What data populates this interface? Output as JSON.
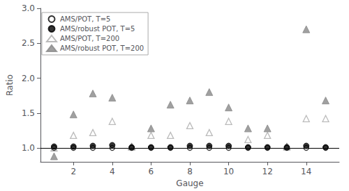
{
  "chart_data": {
    "type": "scatter",
    "xlabel": "Gauge",
    "ylabel": "Ratio",
    "x": [
      1,
      2,
      3,
      4,
      5,
      6,
      7,
      8,
      9,
      10,
      11,
      12,
      13,
      14,
      15
    ],
    "series": [
      {
        "name": "AMS/POT, T=5",
        "color": "#000000",
        "marker": "open_circle",
        "values": [
          1.0,
          1.0,
          1.0,
          1.0,
          1.0,
          1.0,
          1.0,
          1.0,
          1.0,
          1.0,
          1.0,
          1.0,
          1.0,
          1.0,
          1.0
        ]
      },
      {
        "name": "AMS/robust POT, T=5",
        "color": "#000000",
        "marker": "circle",
        "values": [
          1.02,
          1.02,
          1.03,
          1.04,
          1.01,
          1.01,
          1.01,
          1.03,
          1.03,
          1.03,
          1.01,
          1.01,
          1.01,
          1.03,
          1.01
        ]
      },
      {
        "name": "AMS/POT, T=200",
        "color": "#aaaaaa",
        "marker": "open_triangle",
        "values": [
          1.0,
          1.18,
          1.22,
          1.38,
          1.02,
          1.18,
          1.18,
          1.32,
          1.22,
          1.38,
          1.12,
          1.18,
          1.02,
          1.42,
          1.42
        ]
      },
      {
        "name": "AMS/robust POT, T=200",
        "color": "#888888",
        "marker": "triangle",
        "values": [
          0.88,
          1.48,
          1.78,
          1.72,
          1.02,
          1.28,
          1.62,
          1.68,
          1.8,
          1.58,
          1.28,
          1.28,
          1.02,
          2.7,
          1.68
        ]
      }
    ],
    "hline": {
      "y": 1.0,
      "color": "#000000"
    },
    "xlim": [
      0.3,
      15.7
    ],
    "xticks": [
      2,
      4,
      6,
      8,
      10,
      12,
      14
    ],
    "ylim": [
      0.8,
      3.0
    ],
    "yticks": [
      {
        "value": 1.0,
        "label": "1.0"
      },
      {
        "value": 1.5,
        "label": "1.5"
      },
      {
        "value": 2.0,
        "label": "2.0"
      },
      {
        "value": 2.5,
        "label": "2.5"
      },
      {
        "value": 3.0,
        "label": "3.0"
      }
    ],
    "legend": "upper left",
    "grid": false
  }
}
